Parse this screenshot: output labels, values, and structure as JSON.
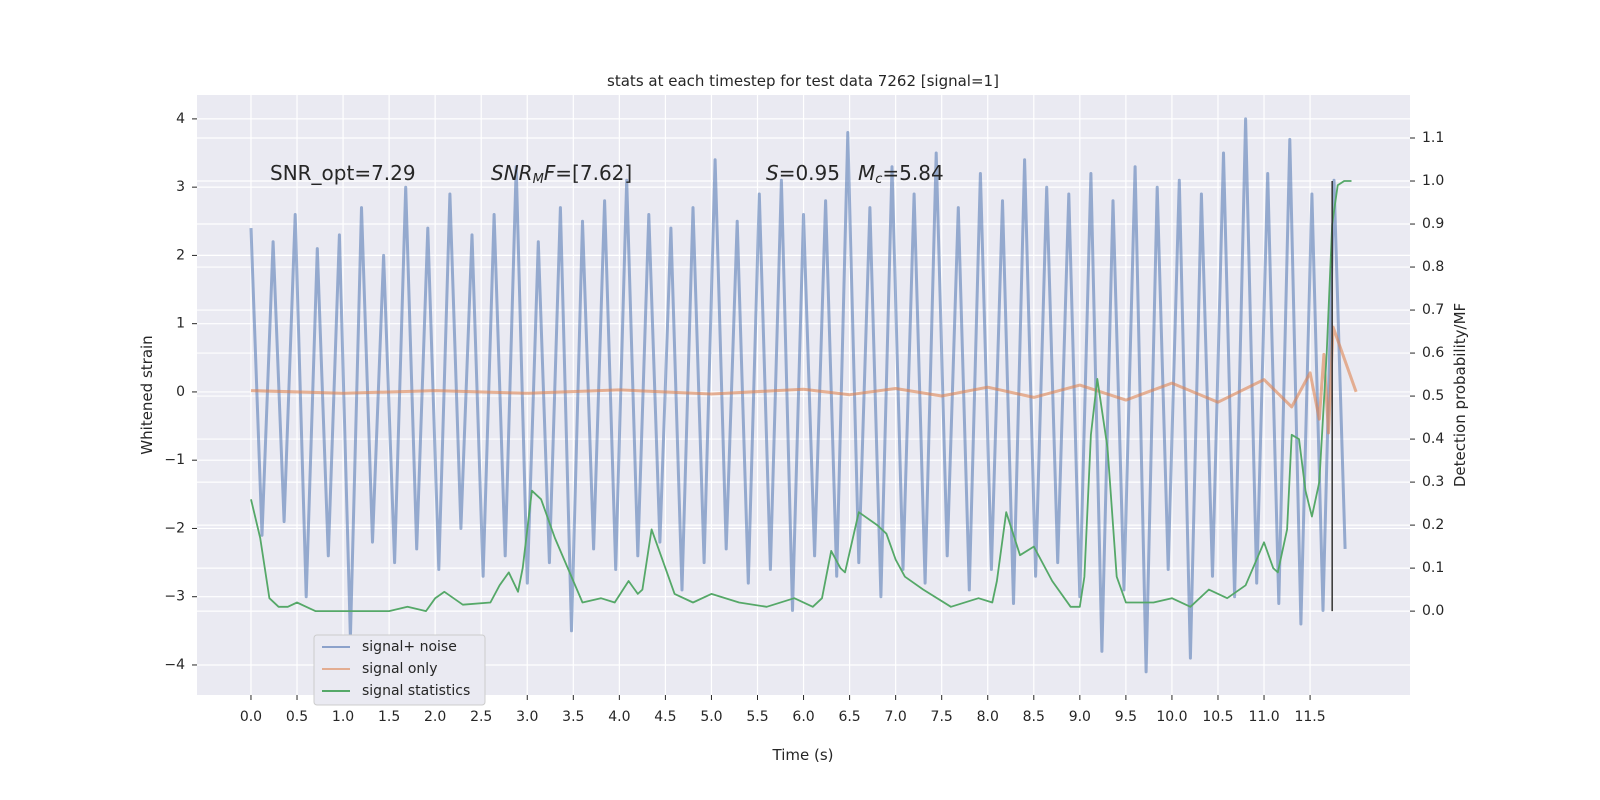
{
  "chart_data": {
    "type": "line",
    "title": "stats at each timestep for test data 7262 [signal=1]",
    "xlabel": "Time (s)",
    "ylabel": "Whitened strain",
    "y2label": "Detection probability/MF",
    "xlim": [
      -0.586,
      12.585
    ],
    "ylim": [
      -4.44,
      4.35
    ],
    "y2lim": [
      -0.195,
      1.2
    ],
    "xticks": [
      {
        "value": 0,
        "label": "0.0"
      },
      0.5,
      {
        "value": 1,
        "label": "1.0"
      },
      1.5,
      {
        "value": 2,
        "label": "2.0"
      },
      2.5,
      {
        "value": 3,
        "label": "3.0"
      },
      3.5,
      {
        "value": 4,
        "label": "4.0"
      },
      4.5,
      {
        "value": 5,
        "label": "5.0"
      },
      5.5,
      {
        "value": 6,
        "label": "6.0"
      },
      6.5,
      {
        "value": 7,
        "label": "7.0"
      },
      7.5,
      {
        "value": 8,
        "label": "8.0"
      },
      8.5,
      {
        "value": 9,
        "label": "9.0"
      },
      9.5,
      {
        "value": 10,
        "label": "10.0"
      },
      10.5,
      {
        "value": 11,
        "label": "11.0"
      },
      11.5
    ],
    "yticks": [
      {
        "value": -4,
        "label": "−4"
      },
      {
        "value": -3,
        "label": "−3"
      },
      {
        "value": -2,
        "label": "−2"
      },
      {
        "value": -1,
        "label": "−1"
      },
      0,
      1,
      2,
      3,
      4
    ],
    "y2ticks": [
      {
        "value": 0,
        "label": "0.0"
      },
      0.1,
      0.2,
      0.3,
      0.4,
      0.5,
      0.6,
      0.7,
      0.8,
      0.9,
      {
        "value": 1,
        "label": "1.0"
      },
      1.1
    ],
    "grid": true,
    "legend": "lower left",
    "annotations": [
      {
        "parts": [
          {
            "text": "SNR_opt=7.29"
          }
        ]
      },
      {
        "parts": [
          {
            "text": "SNR",
            "style": "italic"
          },
          {
            "text": "M",
            "style": "italic",
            "sub": true
          },
          {
            "text": "F",
            "style": "italic"
          },
          {
            "text": "=[7.62]"
          }
        ]
      },
      {
        "parts": [
          {
            "text": "S",
            "style": "italic"
          },
          {
            "text": "=0.95"
          }
        ]
      },
      {
        "parts": [
          {
            "text": "M",
            "style": "italic"
          },
          {
            "text": "c",
            "style": "italic",
            "sub": true
          },
          {
            "text": "=5.84"
          }
        ]
      }
    ],
    "vline": {
      "x": 11.74,
      "y2": [
        0,
        1.0
      ],
      "color": "#333333"
    },
    "series": [
      {
        "name": "signal+ noise",
        "color": "#4c72b0",
        "axis": "y",
        "x": [
          0,
          0.12,
          0.24,
          0.36,
          0.48,
          0.6,
          0.72,
          0.84,
          0.96,
          1.08,
          1.2,
          1.32,
          1.44,
          1.56,
          1.68,
          1.8,
          1.92,
          2.04,
          2.16,
          2.28,
          2.4,
          2.52,
          2.64,
          2.76,
          2.88,
          3.0,
          3.12,
          3.24,
          3.36,
          3.48,
          3.6,
          3.72,
          3.84,
          3.96,
          4.08,
          4.2,
          4.32,
          4.44,
          4.56,
          4.68,
          4.8,
          4.92,
          5.04,
          5.16,
          5.28,
          5.4,
          5.52,
          5.64,
          5.76,
          5.88,
          6.0,
          6.12,
          6.24,
          6.36,
          6.48,
          6.6,
          6.72,
          6.84,
          6.96,
          7.08,
          7.2,
          7.32,
          7.44,
          7.56,
          7.68,
          7.8,
          7.92,
          8.04,
          8.16,
          8.28,
          8.4,
          8.52,
          8.64,
          8.76,
          8.88,
          9.0,
          9.12,
          9.24,
          9.36,
          9.48,
          9.6,
          9.72,
          9.84,
          9.96,
          10.08,
          10.2,
          10.32,
          10.44,
          10.56,
          10.68,
          10.8,
          10.92,
          11.04,
          11.16,
          11.28,
          11.4,
          11.52,
          11.64,
          11.76,
          11.88
        ],
        "values": [
          2.4,
          -2.1,
          2.2,
          -1.9,
          2.6,
          -3.0,
          2.1,
          -2.4,
          2.3,
          -3.6,
          2.7,
          -2.2,
          2.0,
          -2.5,
          3.0,
          -2.3,
          2.4,
          -2.6,
          2.9,
          -2.0,
          2.3,
          -2.7,
          2.6,
          -2.4,
          3.3,
          -2.8,
          2.2,
          -2.5,
          2.7,
          -3.5,
          2.5,
          -2.3,
          2.8,
          -2.6,
          3.1,
          -2.4,
          2.6,
          -2.2,
          2.4,
          -2.9,
          2.7,
          -2.5,
          3.4,
          -2.3,
          2.5,
          -2.8,
          2.9,
          -2.6,
          3.1,
          -3.2,
          2.6,
          -2.4,
          2.8,
          -2.7,
          3.8,
          -2.5,
          2.7,
          -3.0,
          3.3,
          -2.6,
          2.9,
          -2.8,
          3.5,
          -2.4,
          2.7,
          -2.9,
          3.2,
          -2.6,
          2.8,
          -3.1,
          3.4,
          -2.7,
          3.0,
          -2.5,
          2.9,
          -3.0,
          3.2,
          -3.8,
          2.8,
          -2.9,
          3.3,
          -4.1,
          3.0,
          -2.6,
          3.1,
          -3.9,
          2.9,
          -2.7,
          3.5,
          -3.0,
          4.0,
          -2.8,
          3.2,
          -3.1,
          3.7,
          -3.4,
          2.9,
          -3.2,
          3.1,
          -2.3
        ]
      },
      {
        "name": "signal only",
        "color": "#dd8452",
        "axis": "y",
        "x": [
          0,
          1,
          2,
          3,
          4,
          5,
          6,
          6.5,
          7,
          7.5,
          8,
          8.5,
          9,
          9.5,
          10,
          10.5,
          11,
          11.3,
          11.5,
          11.6,
          11.65,
          11.7,
          11.75,
          12.0
        ],
        "values": [
          0.02,
          -0.02,
          0.02,
          -0.02,
          0.03,
          -0.03,
          0.04,
          -0.04,
          0.05,
          -0.06,
          0.07,
          -0.08,
          0.1,
          -0.12,
          0.13,
          -0.15,
          0.18,
          -0.22,
          0.28,
          -0.4,
          0.55,
          -0.6,
          0.95,
          0
        ]
      },
      {
        "name": "signal statistics",
        "color": "#55a868",
        "axis": "y2",
        "x": [
          0.0,
          0.1,
          0.15,
          0.2,
          0.3,
          0.4,
          0.5,
          0.6,
          0.7,
          0.9,
          1.2,
          1.5,
          1.7,
          1.9,
          2.0,
          2.1,
          2.3,
          2.6,
          2.7,
          2.8,
          2.9,
          2.95,
          3.05,
          3.15,
          3.3,
          3.5,
          3.6,
          3.8,
          3.95,
          4.1,
          4.2,
          4.25,
          4.35,
          4.5,
          4.6,
          4.8,
          5.0,
          5.3,
          5.6,
          5.9,
          6.1,
          6.2,
          6.3,
          6.4,
          6.45,
          6.6,
          6.8,
          6.9,
          7.0,
          7.1,
          7.3,
          7.6,
          7.9,
          8.05,
          8.1,
          8.2,
          8.35,
          8.5,
          8.7,
          8.9,
          9.0,
          9.05,
          9.12,
          9.19,
          9.3,
          9.4,
          9.5,
          9.8,
          10.0,
          10.2,
          10.4,
          10.6,
          10.8,
          11.0,
          11.1,
          11.15,
          11.25,
          11.3,
          11.38,
          11.45,
          11.52,
          11.6,
          11.68,
          11.74,
          11.8,
          11.87,
          11.95
        ],
        "values": [
          0.26,
          0.17,
          0.1,
          0.03,
          0.01,
          0.01,
          0.02,
          0.01,
          0.0,
          0.0,
          0.0,
          0.0,
          0.01,
          0.0,
          0.03,
          0.045,
          0.015,
          0.02,
          0.06,
          0.09,
          0.045,
          0.1,
          0.28,
          0.26,
          0.17,
          0.07,
          0.02,
          0.03,
          0.02,
          0.07,
          0.04,
          0.05,
          0.19,
          0.1,
          0.04,
          0.02,
          0.04,
          0.02,
          0.01,
          0.03,
          0.01,
          0.03,
          0.14,
          0.1,
          0.09,
          0.23,
          0.2,
          0.18,
          0.12,
          0.08,
          0.05,
          0.01,
          0.03,
          0.02,
          0.07,
          0.23,
          0.13,
          0.15,
          0.07,
          0.01,
          0.01,
          0.08,
          0.41,
          0.54,
          0.38,
          0.08,
          0.02,
          0.02,
          0.03,
          0.01,
          0.05,
          0.03,
          0.06,
          0.16,
          0.1,
          0.09,
          0.19,
          0.41,
          0.4,
          0.28,
          0.22,
          0.3,
          0.6,
          0.9,
          0.99,
          1.0,
          1.0
        ]
      }
    ]
  }
}
